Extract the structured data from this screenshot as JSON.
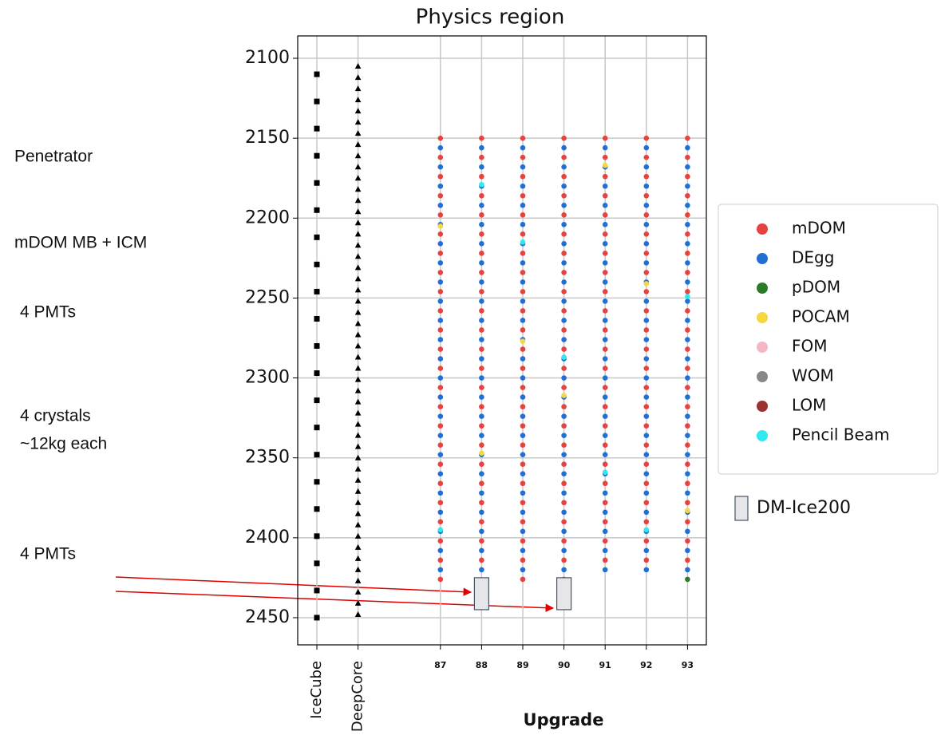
{
  "chart_data": {
    "type": "strip",
    "title": "Physics region",
    "xlabel": "Upgrade",
    "categories": [
      "IceCube",
      "DeepCore",
      null,
      "87",
      "88",
      "89",
      "90",
      "91",
      "92",
      "93"
    ],
    "ylim": [
      2086,
      2467
    ],
    "yticks": [
      2100,
      2150,
      2200,
      2250,
      2300,
      2350,
      2400,
      2450
    ],
    "grid": true,
    "reference_strings": [
      {
        "x": "IceCube",
        "marker": "square",
        "color": "#000000",
        "y": [
          2110,
          2127,
          2144,
          2161,
          2178,
          2195,
          2212,
          2229,
          2246,
          2263,
          2280,
          2297,
          2314,
          2331,
          2348,
          2365,
          2382,
          2399,
          2416,
          2433,
          2450
        ]
      },
      {
        "x": "DeepCore",
        "marker": "triangle",
        "color": "#000000",
        "y": [
          2105,
          2112,
          2119,
          2126,
          2133,
          2140,
          2147,
          2154,
          2161,
          2168,
          2175,
          2182,
          2189,
          2196,
          2203,
          2210,
          2217,
          2224,
          2231,
          2238,
          2245,
          2252,
          2259,
          2266,
          2273,
          2280,
          2287,
          2294,
          2301,
          2308,
          2315,
          2322,
          2329,
          2336,
          2343,
          2350,
          2357,
          2364,
          2371,
          2378,
          2385,
          2392,
          2399,
          2406,
          2413,
          2420,
          2427,
          2434,
          2441,
          2448
        ]
      }
    ],
    "series": [
      {
        "name": "mDOM",
        "color": "#e8423f",
        "groups": [
          {
            "x": "87",
            "y": [
              2150,
              2162,
              2174,
              2186,
              2198,
              2210,
              2222,
              2234,
              2246,
              2258,
              2270,
              2282,
              2294,
              2306,
              2318,
              2330,
              2342,
              2354,
              2366,
              2378,
              2390,
              2402,
              2414,
              2426
            ]
          },
          {
            "x": "88",
            "y": [
              2150,
              2162,
              2174,
              2186,
              2198,
              2210,
              2222,
              2234,
              2246,
              2258,
              2270,
              2282,
              2294,
              2306,
              2318,
              2330,
              2342,
              2354,
              2366,
              2378,
              2390,
              2402,
              2414
            ]
          },
          {
            "x": "89",
            "y": [
              2150,
              2162,
              2174,
              2186,
              2198,
              2210,
              2222,
              2234,
              2246,
              2258,
              2270,
              2282,
              2294,
              2306,
              2318,
              2330,
              2342,
              2354,
              2366,
              2378,
              2390,
              2402,
              2414,
              2426
            ]
          },
          {
            "x": "90",
            "y": [
              2150,
              2162,
              2174,
              2186,
              2198,
              2210,
              2222,
              2234,
              2246,
              2258,
              2270,
              2282,
              2294,
              2306,
              2318,
              2330,
              2342,
              2354,
              2366,
              2378,
              2390,
              2402,
              2414,
              2426
            ]
          },
          {
            "x": "91",
            "y": [
              2150,
              2162,
              2174,
              2186,
              2198,
              2210,
              2222,
              2234,
              2246,
              2258,
              2270,
              2282,
              2294,
              2306,
              2318,
              2330,
              2342,
              2354,
              2366,
              2378,
              2390,
              2402,
              2414
            ]
          },
          {
            "x": "92",
            "y": [
              2150,
              2162,
              2174,
              2186,
              2198,
              2210,
              2222,
              2234,
              2246,
              2258,
              2270,
              2282,
              2294,
              2306,
              2318,
              2330,
              2342,
              2354,
              2366,
              2378,
              2390,
              2402,
              2414
            ]
          },
          {
            "x": "93",
            "y": [
              2150,
              2162,
              2174,
              2186,
              2198,
              2210,
              2222,
              2234,
              2246,
              2258,
              2270,
              2282,
              2294,
              2306,
              2318,
              2330,
              2342,
              2354,
              2366,
              2378,
              2390,
              2402,
              2414
            ]
          }
        ]
      },
      {
        "name": "DEgg",
        "color": "#1f6fd6",
        "groups": [
          {
            "x": "87",
            "y": [
              2156,
              2168,
              2180,
              2192,
              2204,
              2216,
              2228,
              2240,
              2252,
              2264,
              2276,
              2288,
              2300,
              2312,
              2324,
              2336,
              2348,
              2360,
              2372,
              2384,
              2396,
              2408,
              2420
            ]
          },
          {
            "x": "88",
            "y": [
              2156,
              2168,
              2180,
              2192,
              2204,
              2216,
              2228,
              2240,
              2252,
              2264,
              2276,
              2288,
              2300,
              2312,
              2324,
              2336,
              2348,
              2360,
              2372,
              2384,
              2396,
              2408,
              2420
            ]
          },
          {
            "x": "89",
            "y": [
              2156,
              2168,
              2180,
              2192,
              2204,
              2216,
              2228,
              2240,
              2252,
              2264,
              2276,
              2288,
              2300,
              2312,
              2324,
              2336,
              2348,
              2360,
              2372,
              2384,
              2396,
              2408,
              2420
            ]
          },
          {
            "x": "90",
            "y": [
              2156,
              2168,
              2180,
              2192,
              2204,
              2216,
              2228,
              2240,
              2252,
              2264,
              2276,
              2288,
              2300,
              2312,
              2324,
              2336,
              2348,
              2360,
              2372,
              2384,
              2396,
              2408,
              2420
            ]
          },
          {
            "x": "91",
            "y": [
              2156,
              2168,
              2180,
              2192,
              2204,
              2216,
              2228,
              2240,
              2252,
              2264,
              2276,
              2288,
              2300,
              2312,
              2324,
              2336,
              2348,
              2360,
              2372,
              2384,
              2396,
              2408,
              2420
            ]
          },
          {
            "x": "92",
            "y": [
              2156,
              2168,
              2180,
              2192,
              2204,
              2216,
              2228,
              2240,
              2252,
              2264,
              2276,
              2288,
              2300,
              2312,
              2324,
              2336,
              2348,
              2360,
              2372,
              2384,
              2396,
              2408,
              2420
            ]
          },
          {
            "x": "93",
            "y": [
              2156,
              2168,
              2180,
              2192,
              2204,
              2216,
              2228,
              2240,
              2252,
              2264,
              2276,
              2288,
              2300,
              2312,
              2324,
              2336,
              2348,
              2360,
              2372,
              2384,
              2396,
              2408,
              2420
            ]
          }
        ]
      },
      {
        "name": "pDOM",
        "color": "#2a7a2a",
        "groups": [
          {
            "x": "93",
            "y": [
              2426
            ]
          }
        ]
      },
      {
        "name": "POCAM",
        "color": "#f5d742",
        "groups": [
          {
            "x": "87",
            "y": [
              2205
            ]
          },
          {
            "x": "88",
            "y": [
              2347
            ]
          },
          {
            "x": "89",
            "y": [
              2277
            ]
          },
          {
            "x": "90",
            "y": [
              2311
            ]
          },
          {
            "x": "91",
            "y": [
              2167
            ]
          },
          {
            "x": "92",
            "y": [
              2241
            ]
          },
          {
            "x": "93",
            "y": [
              2383
            ]
          }
        ]
      },
      {
        "name": "FOM",
        "color": "#f4b8c4",
        "groups": []
      },
      {
        "name": "WOM",
        "color": "#888888",
        "groups": []
      },
      {
        "name": "LOM",
        "color": "#9b3030",
        "groups": []
      },
      {
        "name": "Pencil Beam",
        "color": "#30e8f0",
        "groups": [
          {
            "x": "87",
            "y": [
              2395
            ]
          },
          {
            "x": "88",
            "y": [
              2179
            ]
          },
          {
            "x": "89",
            "y": [
              2215
            ]
          },
          {
            "x": "90",
            "y": [
              2287
            ]
          },
          {
            "x": "91",
            "y": [
              2359
            ]
          },
          {
            "x": "92",
            "y": [
              2395
            ]
          },
          {
            "x": "93",
            "y": [
              2249
            ]
          }
        ]
      }
    ],
    "boxes": {
      "name": "DM-Ice200",
      "color": "#e6e6ea",
      "items": [
        {
          "x": "88",
          "y": [
            2425,
            2445
          ]
        },
        {
          "x": "90",
          "y": [
            2425,
            2445
          ]
        }
      ]
    },
    "annotations": [
      "Penetrator",
      "mDOM MB + ICM",
      "4 PMTs",
      "4 crystals",
      "~12kg each",
      "4 PMTs"
    ]
  }
}
